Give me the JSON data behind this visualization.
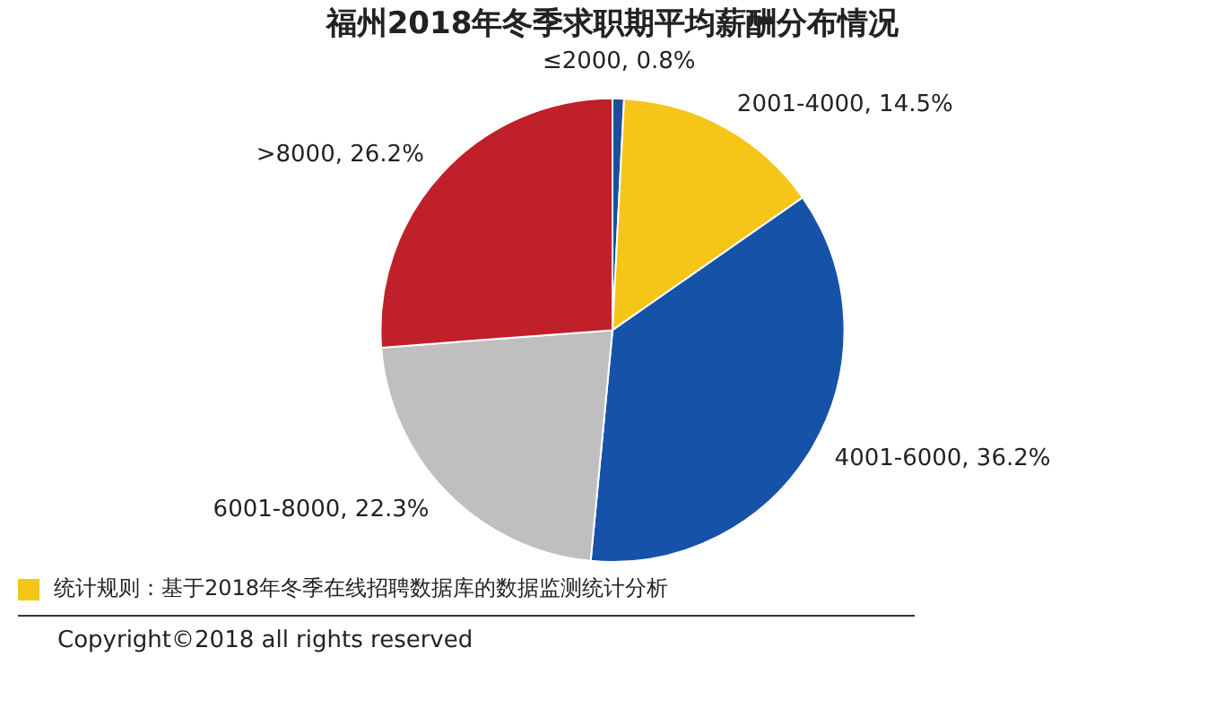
{
  "chart_data": {
    "type": "pie",
    "title": "福州2018年冬季求职期平均薪酬分布情况",
    "categories": [
      "≤2000",
      "2001-4000",
      "4001-6000",
      "6001-8000",
      ">8000"
    ],
    "values": [
      0.8,
      14.5,
      36.2,
      22.3,
      26.2
    ],
    "value_labels": [
      "0.8%",
      "14.5%",
      "36.2%",
      "22.3%",
      "26.2%"
    ],
    "colors": [
      "#1f4e99",
      "#f5c518",
      "#1652a8",
      "#bfbfbf",
      "#c0202a"
    ],
    "legend": false,
    "annotations": [
      "统计规则：基于2018年冬季在线招聘数据库的数据监测统计分析",
      "Copyright©2018 all rights reserved"
    ]
  }
}
